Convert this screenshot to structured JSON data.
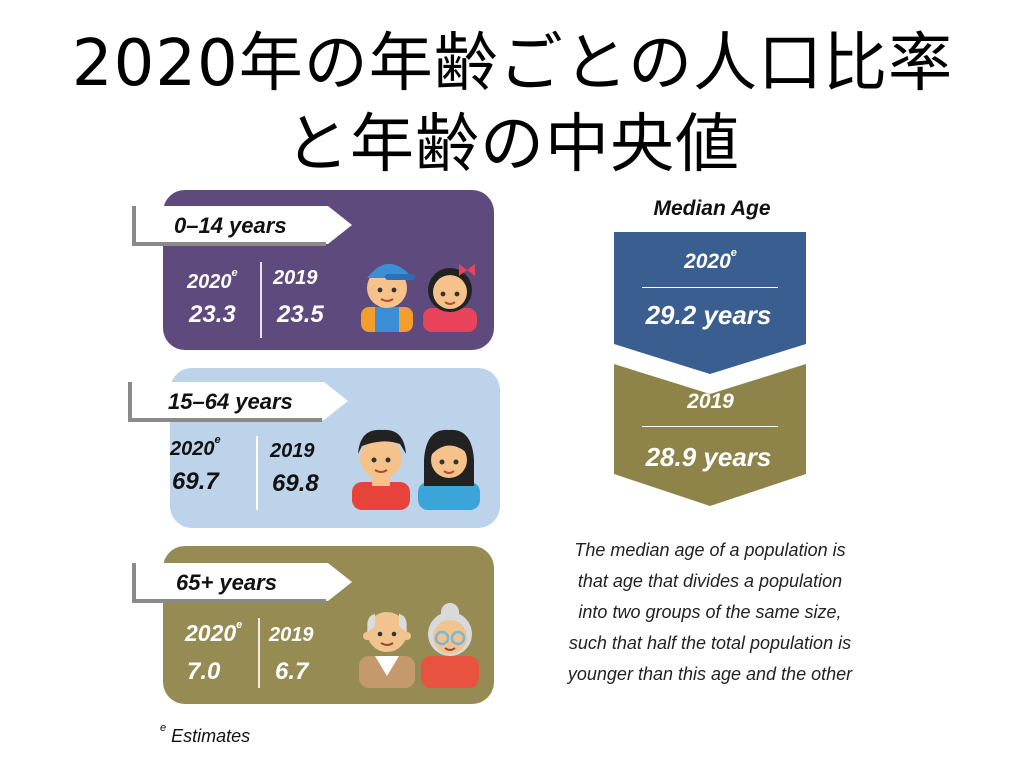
{
  "title": {
    "line1": "2020年の年齢ごとの人口比率",
    "line2": "と年齢の中央値"
  },
  "colors": {
    "young": "#5e4a7c",
    "working": "#bdd3ea",
    "elderly": "#958b53",
    "median_2020": "#3b5e90",
    "median_2019": "#8e844a"
  },
  "groups": [
    {
      "label": "0–14 years",
      "year_a": "2020",
      "year_a_mark": "e",
      "value_a": "23.3",
      "year_b": "2019",
      "value_b": "23.5"
    },
    {
      "label": "15–64 years",
      "year_a": "2020",
      "year_a_mark": "e",
      "value_a": "69.7",
      "year_b": "2019",
      "value_b": "69.8"
    },
    {
      "label": "65+ years",
      "year_a": "2020",
      "year_a_mark": "e",
      "value_a": "7.0",
      "year_b": "2019",
      "value_b": "6.7"
    }
  ],
  "median": {
    "title": "Median Age",
    "current": {
      "year": "2020",
      "mark": "e",
      "value": "29.2 years"
    },
    "previous": {
      "year": "2019",
      "value": "28.9 years"
    }
  },
  "description": [
    "The median age of a population is",
    "that age that divides a population",
    "into two groups of the same size,",
    "such that half the total population is",
    "younger than this age and the other"
  ],
  "footnote": {
    "mark": "e",
    "text": "Estimates"
  },
  "icons": [
    "child-boy-icon",
    "child-girl-icon",
    "man-icon",
    "woman-icon",
    "elderly-man-icon",
    "elderly-woman-icon"
  ]
}
